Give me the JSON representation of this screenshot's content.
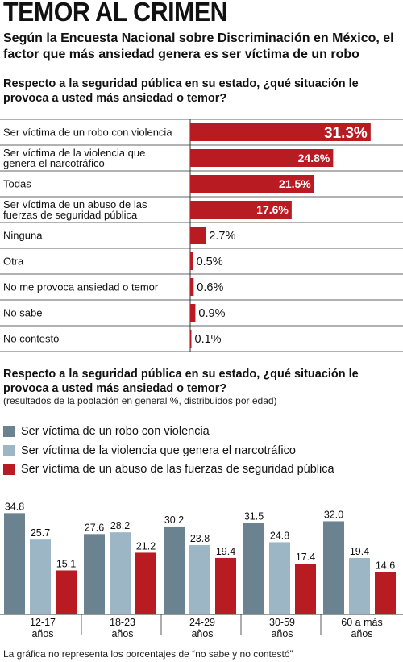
{
  "header": {
    "title": "TEMOR AL CRIMEN",
    "subtitle": "Según la Encuesta Nacional sobre Discriminación en México, el factor que más ansiedad genera es ser víctima de un robo"
  },
  "colors": {
    "red": "#b81b22",
    "dark": "#6b8291",
    "light": "#9cb6c6",
    "grid": "#333333"
  },
  "chart_data": [
    {
      "type": "bar",
      "orientation": "horizontal",
      "title": "Respecto a la seguridad pública en su estado, ¿qué situación le provoca a usted más ansiedad o temor?",
      "categories": [
        "Ser víctima de un robo con violencia",
        "Ser víctima de la violencia que genera el narcotráfico",
        "Todas",
        "Ser víctima de un abuso de las fuerzas de seguridad pública",
        "Ninguna",
        "Otra",
        "No me provoca ansiedad o temor",
        "No sabe",
        "No contestó"
      ],
      "values": [
        31.3,
        24.8,
        21.5,
        17.6,
        2.7,
        0.5,
        0.6,
        0.9,
        0.1
      ],
      "value_labels": [
        "31.3%",
        "24.8%",
        "21.5%",
        "17.6%",
        "2.7%",
        "0.5%",
        "0.6%",
        "0.9%",
        "0.1%"
      ],
      "xlim": [
        0,
        33
      ]
    },
    {
      "type": "bar",
      "orientation": "vertical",
      "title": "Respecto a la seguridad pública en su estado, ¿qué situación le provoca a usted más ansiedad o temor?",
      "subtitle": "(resultados de la población en general %, distribuidos por edad)",
      "categories": [
        "12-17 años",
        "18-23 años",
        "24-29 años",
        "30-59 años",
        "60 a más años"
      ],
      "series": [
        {
          "name": "Ser víctima de un robo con violencia",
          "values": [
            34.8,
            27.6,
            30.2,
            31.5,
            32.0
          ],
          "labels": [
            "34.8",
            "27.6",
            "30.2",
            "31.5",
            "32.0"
          ]
        },
        {
          "name": "Ser víctima de la violencia que genera el narcotráfico",
          "values": [
            25.7,
            28.2,
            23.8,
            24.8,
            19.4
          ],
          "labels": [
            "25.7",
            "28.2",
            "23.8",
            "24.8",
            "19.4"
          ]
        },
        {
          "name": "Ser víctima de un abuso de las fuerzas de seguridad pública",
          "values": [
            15.1,
            21.2,
            19.4,
            17.4,
            14.6
          ],
          "labels": [
            "15.1",
            "21.2",
            "19.4",
            "17.4",
            "14.6"
          ]
        }
      ],
      "ylim": [
        0,
        36
      ],
      "footnote": "La gráfica no representa los porcentajes de “no sabe y no contestó”"
    }
  ]
}
